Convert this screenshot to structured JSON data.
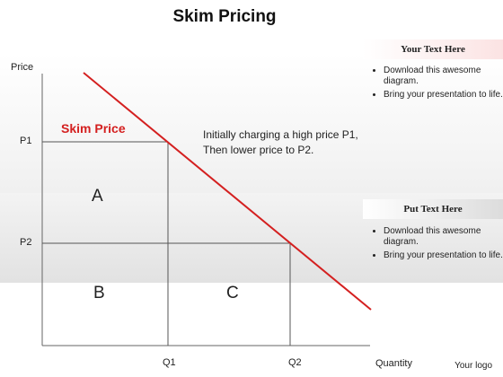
{
  "title": "Skim Pricing",
  "axes": {
    "y_label": "Price",
    "x_label": "Quantity",
    "p1": "P1",
    "p2": "P2",
    "q1": "Q1",
    "q2": "Q2"
  },
  "regions": {
    "a": "A",
    "b": "B",
    "c": "C"
  },
  "skim_label": "Skim Price",
  "annotation": {
    "line1": "Initially charging a high price P1,",
    "line2": "Then lower price to P2."
  },
  "panel1": {
    "heading": "Your Text Here",
    "bullets": [
      "Download this awesome diagram.",
      "Bring your presentation to life."
    ]
  },
  "panel2": {
    "heading": "Put Text Here",
    "bullets": [
      "Download this awesome diagram.",
      "Bring your presentation to life."
    ]
  },
  "logo": "Your logo",
  "colors": {
    "demand_line": "#d42020",
    "skim_label": "#d42020"
  }
}
